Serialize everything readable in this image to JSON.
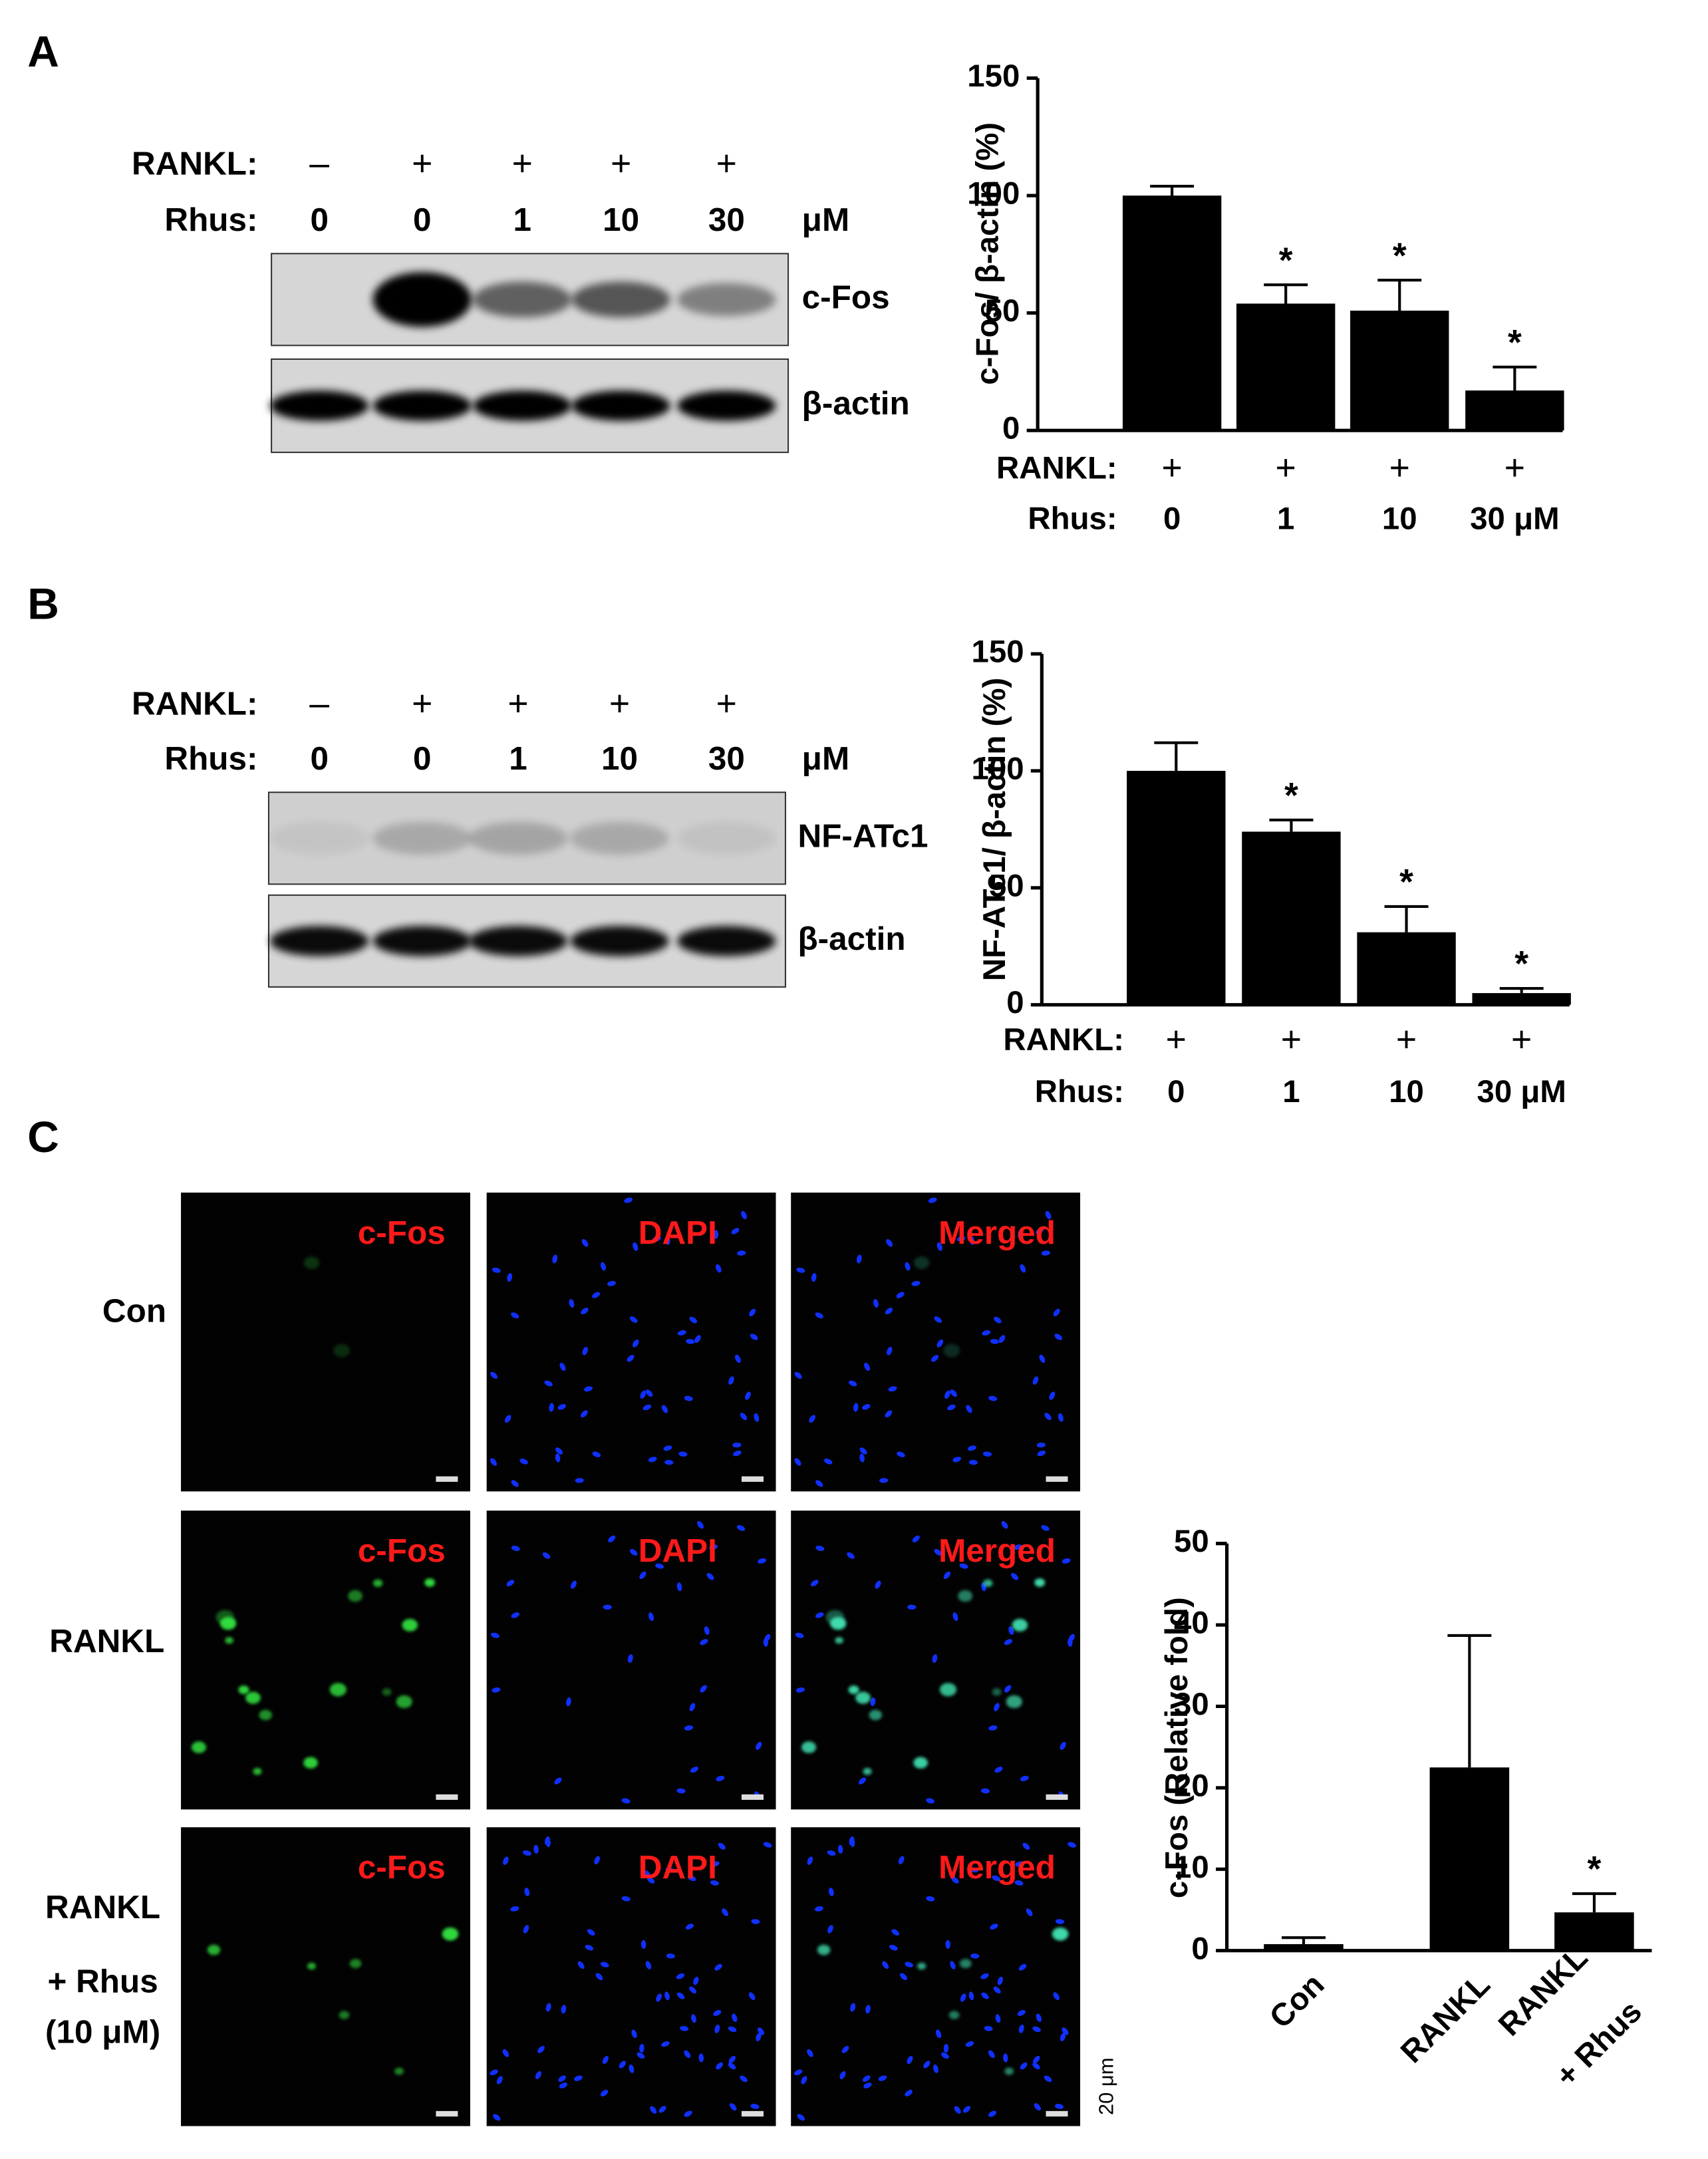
{
  "panel_labels": [
    "A",
    "B",
    "C"
  ],
  "blots": [
    {
      "treatment_label": "RANKL:",
      "treatment": [
        "–",
        "+",
        "+",
        "+",
        "+"
      ],
      "dose_label": "Rhus:",
      "doses": [
        "0",
        "0",
        "1",
        "10",
        "30"
      ],
      "dose_unit": "μM",
      "bands": [
        "c-Fos",
        "β-actin"
      ]
    },
    {
      "treatment_label": "RANKL:",
      "treatment": [
        "–",
        "+",
        "+",
        "+",
        "+"
      ],
      "dose_label": "Rhus:",
      "doses": [
        "0",
        "0",
        "1",
        "10",
        "30"
      ],
      "dose_unit": "μM",
      "bands": [
        "NF-ATc1",
        "β-actin"
      ]
    }
  ],
  "chart_data": [
    {
      "type": "bar",
      "ylabel": "c-Fos/ β-actin (%)",
      "treatment_label": "RANKL:",
      "treatment": [
        "+",
        "+",
        "+",
        "+"
      ],
      "category_label": "Rhus:",
      "categories": [
        "0",
        "1",
        "10",
        "30 μM"
      ],
      "values": [
        100,
        54,
        51,
        17
      ],
      "errors": [
        4,
        8,
        13,
        10
      ],
      "significance": [
        null,
        "*",
        "*",
        "*"
      ],
      "ylim": [
        0,
        150
      ],
      "yticks": [
        0,
        50,
        100,
        150
      ],
      "color": "#000000"
    },
    {
      "type": "bar",
      "ylabel": "NF-ATc1/ β-actin (%)",
      "treatment_label": "RANKL:",
      "treatment": [
        "+",
        "+",
        "+",
        "+"
      ],
      "category_label": "Rhus:",
      "categories": [
        "0",
        "1",
        "10",
        "30 μM"
      ],
      "values": [
        100,
        74,
        31,
        5
      ],
      "errors": [
        12,
        5,
        11,
        2
      ],
      "significance": [
        null,
        "*",
        "*",
        "*"
      ],
      "ylim": [
        0,
        150
      ],
      "yticks": [
        0,
        50,
        100,
        150
      ],
      "color": "#000000"
    },
    {
      "type": "bar",
      "ylabel": "c-Fos (Relative fold)",
      "categories": [
        [
          "Con"
        ],
        [
          "RANKL"
        ],
        [
          "RANKL",
          "+ Rhus"
        ]
      ],
      "values": [
        0.8,
        22.5,
        4.7
      ],
      "errors": [
        0.8,
        16.2,
        2.3
      ],
      "significance": [
        null,
        null,
        "*"
      ],
      "ylim": [
        0,
        50
      ],
      "yticks": [
        0,
        10,
        20,
        30,
        40,
        50
      ],
      "color": "#000000"
    }
  ],
  "microscopy": {
    "rows": [
      [
        "Con"
      ],
      [
        "RANKL"
      ],
      [
        "RANKL",
        "+ Rhus",
        "(10 μM)"
      ]
    ],
    "channels": [
      "c-Fos",
      "DAPI",
      "Merged"
    ],
    "scale_bar": "20 μm"
  }
}
